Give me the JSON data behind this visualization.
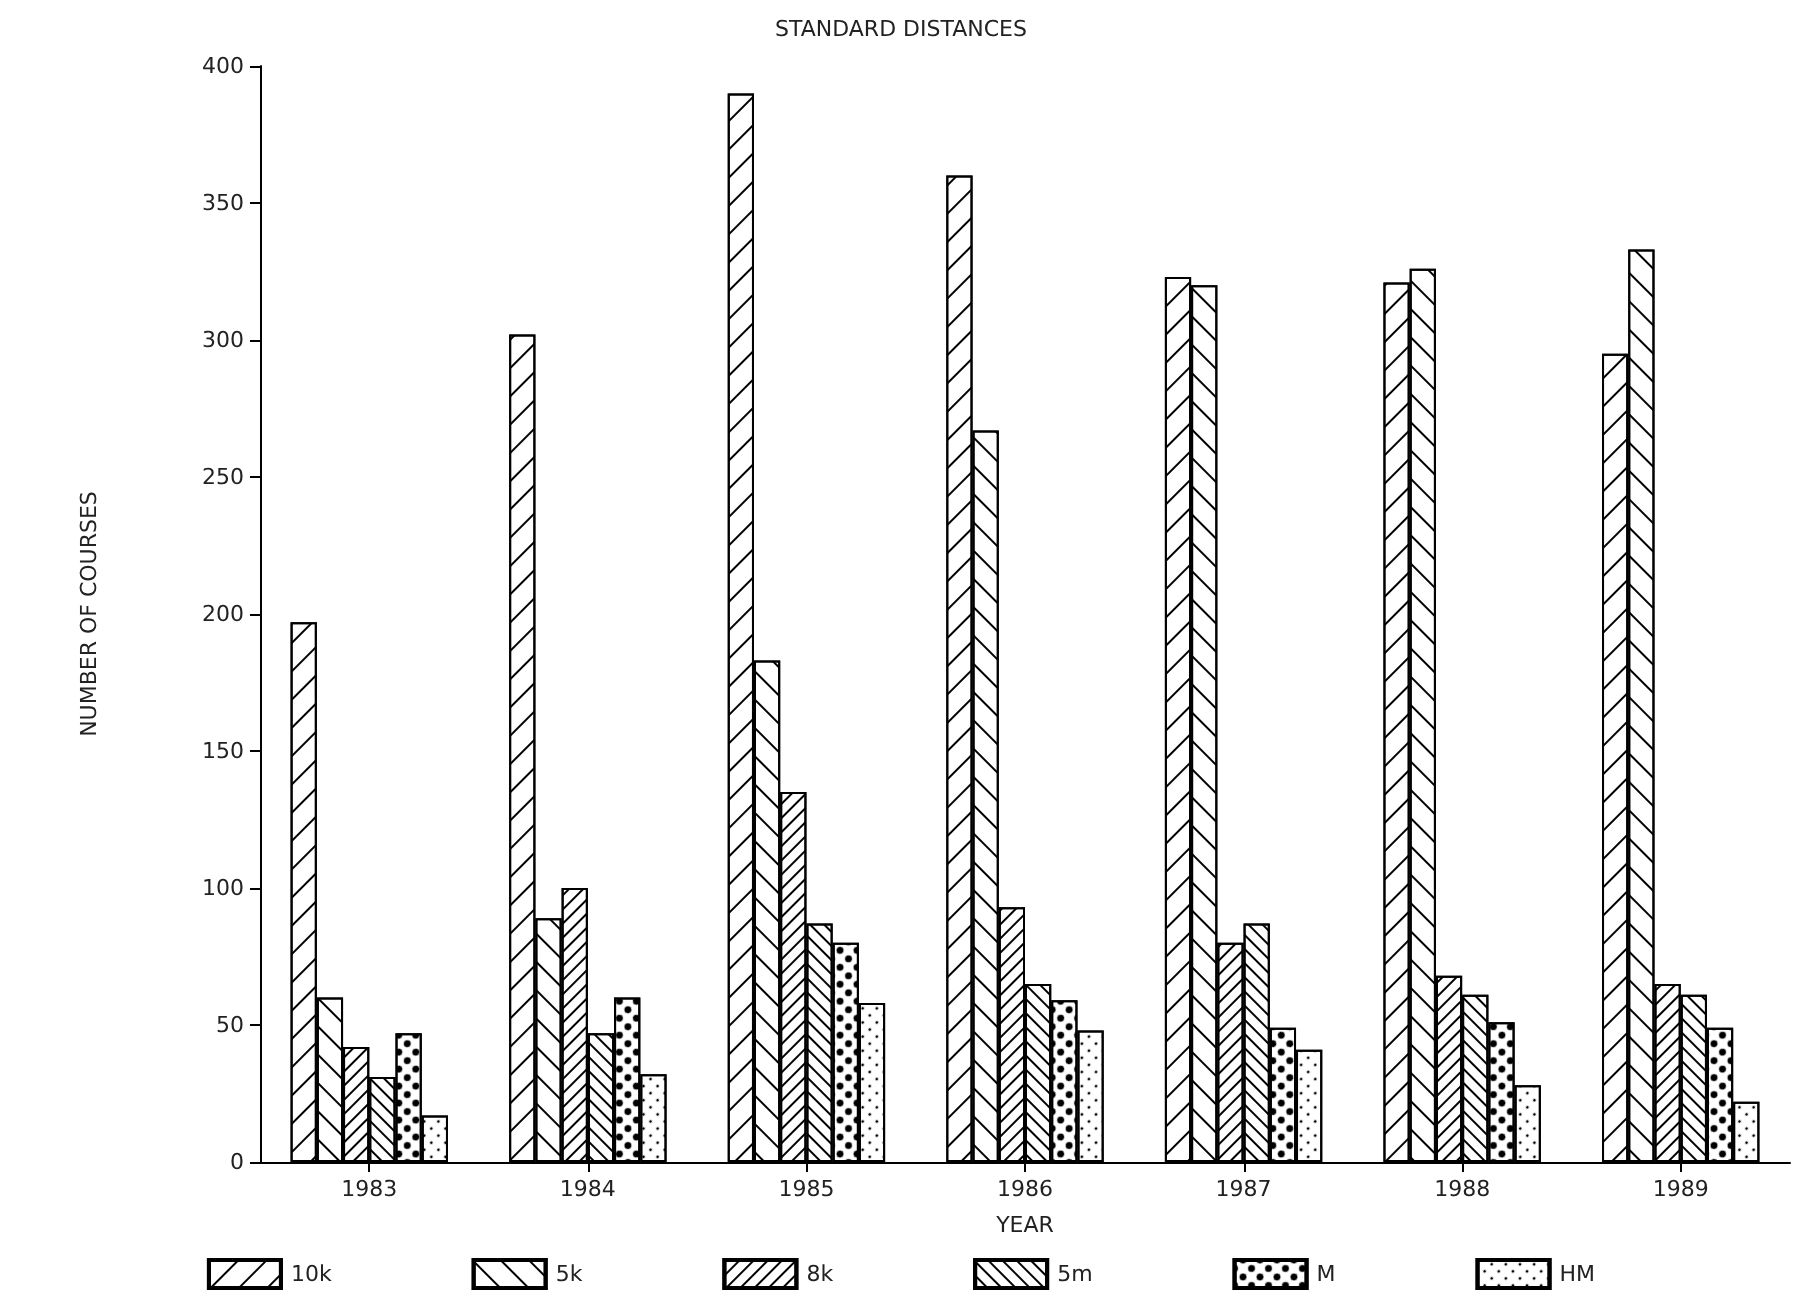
{
  "chart_data": {
    "type": "bar",
    "title": "STANDARD DISTANCES",
    "xlabel": "YEAR",
    "ylabel": "NUMBER OF COURSES",
    "categories": [
      "1983",
      "1984",
      "1985",
      "1986",
      "1987",
      "1988",
      "1989"
    ],
    "series": [
      {
        "name": "10k",
        "color": "#ffffff",
        "values": [
          197,
          302,
          390,
          360,
          323,
          321,
          295
        ]
      },
      {
        "name": "5k",
        "color": "#ffffff",
        "values": [
          60,
          89,
          183,
          267,
          320,
          326,
          333
        ]
      },
      {
        "name": "8k",
        "color": "#ffffff",
        "values": [
          42,
          100,
          135,
          93,
          80,
          68,
          65
        ]
      },
      {
        "name": "5m",
        "color": "#ffffff",
        "values": [
          31,
          47,
          87,
          65,
          87,
          61,
          61
        ]
      },
      {
        "name": "M",
        "color": "#ffffff",
        "values": [
          47,
          60,
          80,
          59,
          49,
          51,
          49
        ]
      },
      {
        "name": "HM",
        "color": "#ffffff",
        "values": [
          17,
          32,
          58,
          48,
          41,
          28,
          22
        ]
      }
    ],
    "ylim": [
      0,
      400
    ],
    "yticks": [
      0,
      50,
      100,
      150,
      200,
      250,
      300,
      350,
      400
    ],
    "grid": false,
    "legend": "bottom"
  }
}
